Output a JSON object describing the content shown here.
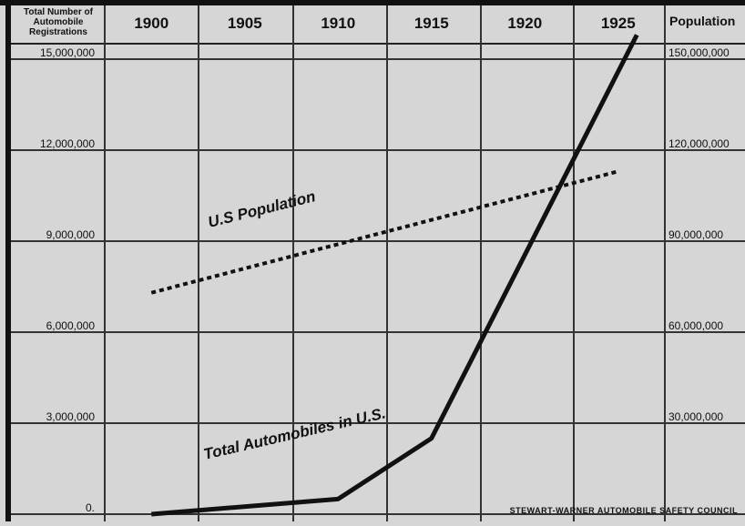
{
  "chart_data": {
    "type": "line",
    "y_label": "Total Number of Automobile Registrations",
    "y2_label": "Population",
    "credit": "STEWART-WARNER AUTOMOBILE SAFETY COUNCIL",
    "xlim": [
      1897.5,
      1927.5
    ],
    "xticks": [
      1900,
      1905,
      1910,
      1915,
      1920,
      1925
    ],
    "ylim": [
      0,
      15000000
    ],
    "yticks": [
      {
        "value": 0,
        "label": "0."
      },
      {
        "value": 3000000,
        "label": "3,000,000"
      },
      {
        "value": 6000000,
        "label": "6,000,000"
      },
      {
        "value": 9000000,
        "label": "9,000,000"
      },
      {
        "value": 12000000,
        "label": "12,000,000"
      },
      {
        "value": 15000000,
        "label": "15,000,000"
      }
    ],
    "y2lim": [
      0,
      150000000
    ],
    "y2ticks": [
      {
        "value": 30000000,
        "label": "30,000,000"
      },
      {
        "value": 60000000,
        "label": "60,000,000"
      },
      {
        "value": 90000000,
        "label": "90,000,000"
      },
      {
        "value": 120000000,
        "label": "120,000,000"
      },
      {
        "value": 150000000,
        "label": "150,000,000"
      }
    ],
    "grid": true,
    "series": [
      {
        "name": "Total Automobiles in U.S.",
        "color": "#111111",
        "style": "solid",
        "x": [
          1900,
          1910,
          1915,
          1926
        ],
        "values": [
          0,
          500000,
          2500000,
          15800000
        ]
      },
      {
        "name": "U.S Population",
        "color": "#111111",
        "style": "dotted",
        "axis": "y2",
        "x": [
          1900,
          1925
        ],
        "values": [
          73000000,
          113000000
        ]
      }
    ]
  }
}
